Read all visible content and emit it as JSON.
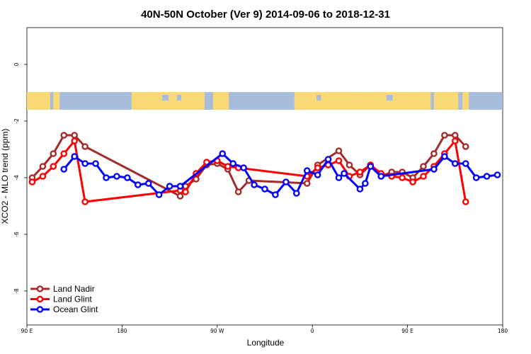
{
  "chart_data": {
    "type": "line",
    "title": "40N-50N October (Ver 9)   2014-09-06 to 2018-12-31",
    "xlabel": "Longitude",
    "ylabel": "XCO2 - MLO trend (ppm)",
    "x_ticks": [
      {
        "value": 90,
        "label": "90 E"
      },
      {
        "value": 180,
        "label": "180"
      },
      {
        "value": 270,
        "label": "90 W"
      },
      {
        "value": 360,
        "label": "0"
      },
      {
        "value": 450,
        "label": "90 E"
      },
      {
        "value": 540,
        "label": "180"
      }
    ],
    "y_ticks": [
      {
        "value": 0,
        "label": "0"
      },
      {
        "value": -2,
        "label": "-2"
      },
      {
        "value": -4,
        "label": "-4"
      },
      {
        "value": -6,
        "label": "-6"
      },
      {
        "value": -8,
        "label": "-8"
      }
    ],
    "xlim": [
      90,
      540
    ],
    "ylim": [
      -9.2,
      1.3
    ],
    "grid": false,
    "legend_position": "bottom-left",
    "map_strip": {
      "ocean_color": "#a7bddb",
      "land_color": "#f8d976"
    },
    "series": [
      {
        "name": "Land Nadir",
        "color": "#a52a2a",
        "x": [
          95,
          105,
          115,
          125,
          135,
          145,
          235,
          240,
          250,
          260,
          270,
          280,
          290,
          300,
          355,
          365,
          385,
          395,
          405,
          415,
          425,
          435,
          445,
          455,
          465,
          475,
          485,
          495,
          505
        ],
        "y": [
          -4.0,
          -3.6,
          -3.15,
          -2.5,
          -2.5,
          -2.9,
          -4.65,
          -4.3,
          -4.05,
          -3.55,
          -3.5,
          -3.7,
          -4.5,
          -4.1,
          -4.2,
          -3.55,
          -3.05,
          -3.55,
          -3.9,
          -3.55,
          -3.95,
          -3.8,
          -3.8,
          -4.0,
          -3.6,
          -3.15,
          -2.5,
          -2.5,
          -2.9
        ]
      },
      {
        "name": "Land Glint",
        "color": "#ff0000",
        "x": [
          95,
          105,
          115,
          125,
          135,
          145,
          235,
          240,
          250,
          260,
          270,
          280,
          290,
          355,
          365,
          375,
          385,
          395,
          405,
          415,
          425,
          435,
          445,
          455,
          465,
          475,
          485,
          495,
          505
        ],
        "y": [
          -4.15,
          -3.95,
          -3.6,
          -3.15,
          -2.7,
          -4.85,
          -4.45,
          -4.5,
          -3.85,
          -3.45,
          -3.4,
          -3.6,
          -3.65,
          -3.95,
          -3.65,
          -3.55,
          -3.4,
          -3.95,
          -3.8,
          -3.55,
          -3.85,
          -3.95,
          -4.0,
          -4.15,
          -3.95,
          -3.6,
          -3.15,
          -2.7,
          -4.85
        ]
      },
      {
        "name": "Ocean Glint",
        "color": "#0000ff",
        "x": [
          125,
          135,
          145,
          155,
          165,
          175,
          185,
          195,
          205,
          215,
          225,
          235,
          275,
          285,
          295,
          305,
          315,
          325,
          335,
          345,
          355,
          365,
          375,
          385,
          390,
          405,
          410,
          415,
          425,
          475,
          485,
          495,
          505,
          515,
          525,
          535
        ],
        "y": [
          -3.7,
          -3.25,
          -3.5,
          -3.5,
          -4.0,
          -3.95,
          -4.0,
          -4.25,
          -4.2,
          -4.6,
          -4.3,
          -4.3,
          -3.15,
          -3.5,
          -3.65,
          -4.25,
          -4.4,
          -4.6,
          -4.15,
          -4.55,
          -3.75,
          -3.9,
          -3.35,
          -4.0,
          -3.85,
          -4.4,
          -4.2,
          -3.6,
          -3.95,
          -3.7,
          -3.25,
          -3.5,
          -3.5,
          -4.0,
          -3.95,
          -3.9
        ]
      }
    ]
  }
}
